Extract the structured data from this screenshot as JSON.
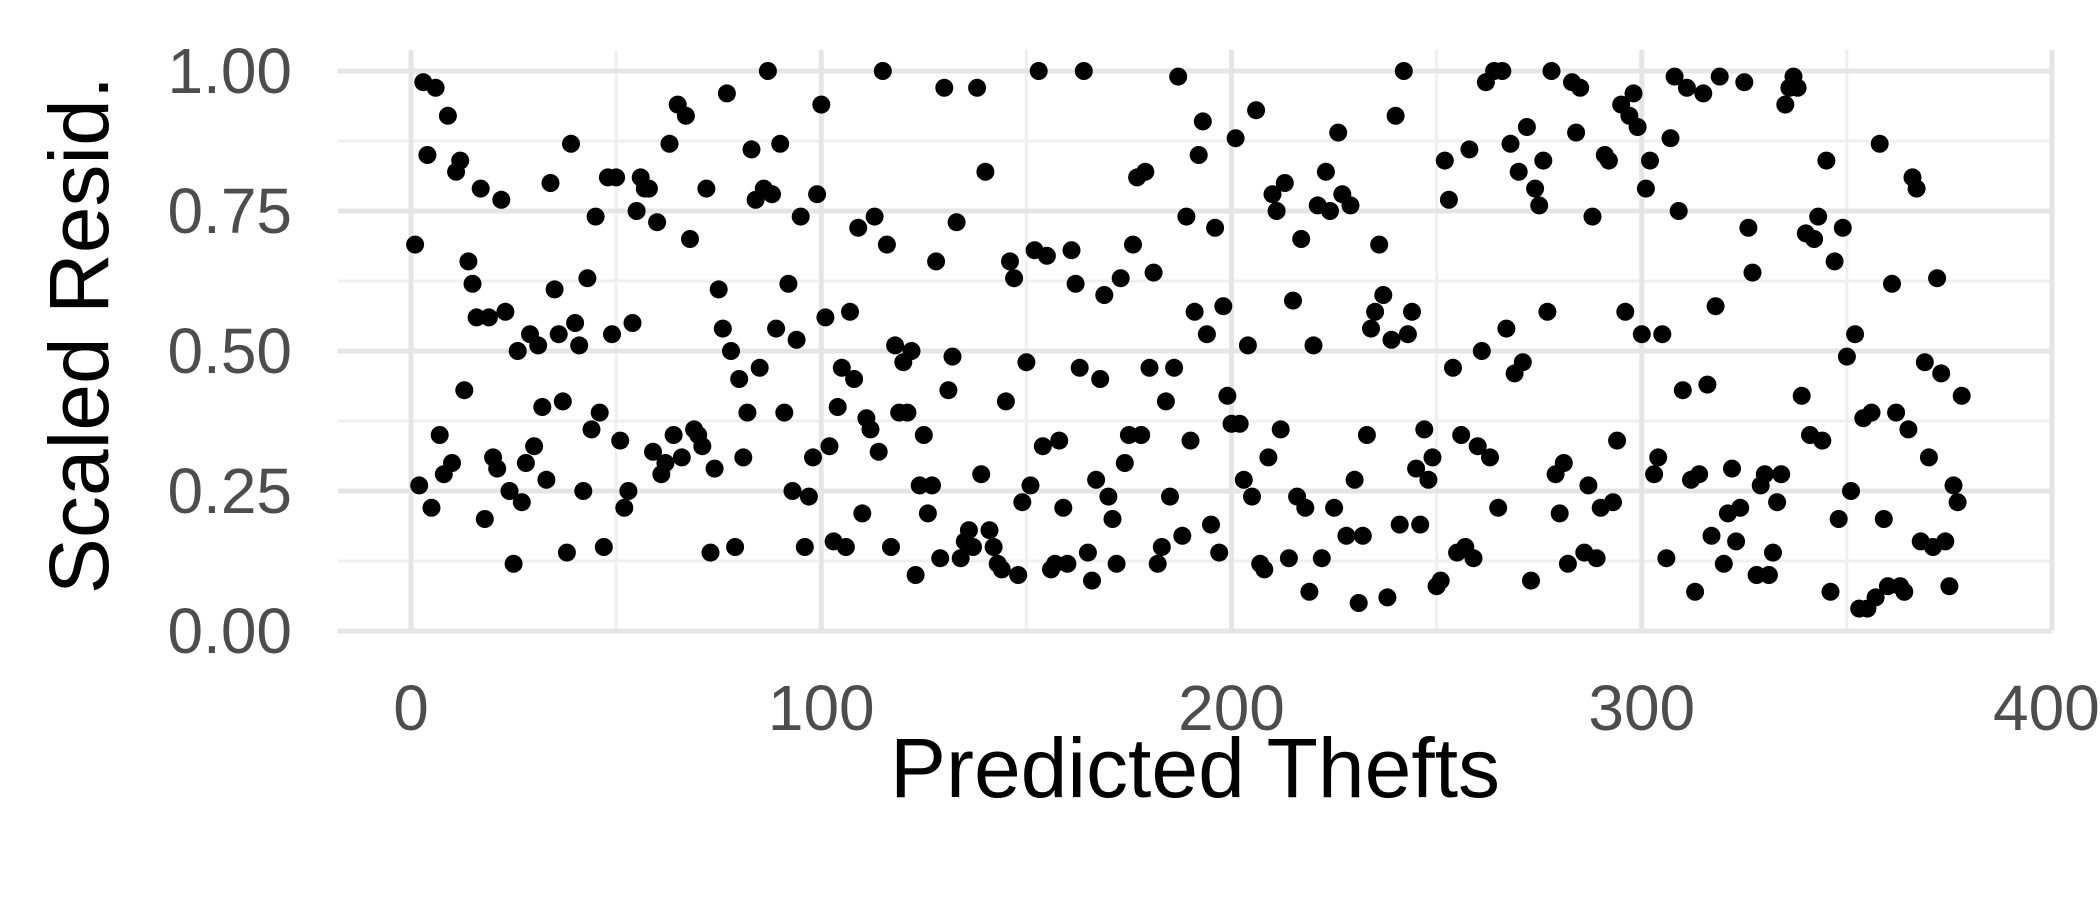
{
  "chart_data": {
    "type": "scatter",
    "title": "",
    "xlabel": "Predicted Thefts",
    "ylabel": "Scaled Resid.",
    "xlim": [
      -15,
      400
    ],
    "ylim": [
      -0.02,
      1.02
    ],
    "x_ticks": [
      0,
      100,
      200,
      300,
      400
    ],
    "x_tick_labels": [
      "0",
      "100",
      "200",
      "300",
      "400"
    ],
    "y_ticks": [
      0,
      0.25,
      0.5,
      0.75,
      1.0
    ],
    "y_tick_labels": [
      "0.00",
      "0.25",
      "0.50",
      "0.75",
      "1.00"
    ],
    "grid": true,
    "legend": "none",
    "point_color": "#000000",
    "points": [
      [
        1,
        0.69
      ],
      [
        2,
        0.26
      ],
      [
        3,
        0.98
      ],
      [
        4,
        0.85
      ],
      [
        5,
        0.22
      ],
      [
        6,
        0.97
      ],
      [
        7,
        0.35
      ],
      [
        8,
        0.28
      ],
      [
        9,
        0.92
      ],
      [
        10,
        0.3
      ],
      [
        11,
        0.82
      ],
      [
        12,
        0.84
      ],
      [
        13,
        0.43
      ],
      [
        14,
        0.66
      ],
      [
        15,
        0.62
      ],
      [
        16,
        0.56
      ],
      [
        17,
        0.79
      ],
      [
        18,
        0.2
      ],
      [
        19,
        0.56
      ],
      [
        20,
        0.31
      ],
      [
        21,
        0.29
      ],
      [
        22,
        0.77
      ],
      [
        23,
        0.57
      ],
      [
        24,
        0.25
      ],
      [
        25,
        0.12
      ],
      [
        26,
        0.5
      ],
      [
        27,
        0.23
      ],
      [
        28,
        0.3
      ],
      [
        29,
        0.53
      ],
      [
        30,
        0.33
      ],
      [
        31,
        0.51
      ],
      [
        32,
        0.4
      ],
      [
        33,
        0.27
      ],
      [
        34,
        0.8
      ],
      [
        35,
        0.61
      ],
      [
        36,
        0.53
      ],
      [
        37,
        0.41
      ],
      [
        38,
        0.14
      ],
      [
        39,
        0.87
      ],
      [
        40,
        0.55
      ],
      [
        41,
        0.51
      ],
      [
        42,
        0.25
      ],
      [
        43,
        0.63
      ],
      [
        44,
        0.36
      ],
      [
        45,
        0.74
      ],
      [
        46,
        0.39
      ],
      [
        47,
        0.15
      ],
      [
        48,
        0.81
      ],
      [
        49,
        0.53
      ],
      [
        50,
        0.81
      ],
      [
        51,
        0.34
      ],
      [
        52,
        0.22
      ],
      [
        53,
        0.25
      ],
      [
        54,
        0.55
      ],
      [
        55,
        0.75
      ],
      [
        56,
        0.81
      ],
      [
        57,
        0.79
      ],
      [
        58,
        0.79
      ],
      [
        59,
        0.32
      ],
      [
        60,
        0.73
      ],
      [
        61,
        0.28
      ],
      [
        62,
        0.3
      ],
      [
        63,
        0.87
      ],
      [
        64,
        0.35
      ],
      [
        65,
        0.94
      ],
      [
        66,
        0.31
      ],
      [
        67,
        0.92
      ],
      [
        68,
        0.7
      ],
      [
        69,
        0.36
      ],
      [
        70,
        0.35
      ],
      [
        71,
        0.33
      ],
      [
        72,
        0.79
      ],
      [
        73,
        0.14
      ],
      [
        74,
        0.29
      ],
      [
        75,
        0.61
      ],
      [
        76,
        0.54
      ],
      [
        77,
        0.96
      ],
      [
        78,
        0.5
      ],
      [
        79,
        0.15
      ],
      [
        80,
        0.45
      ],
      [
        81,
        0.31
      ],
      [
        82,
        0.39
      ],
      [
        83,
        0.86
      ],
      [
        84,
        0.77
      ],
      [
        85,
        0.47
      ],
      [
        86,
        0.79
      ],
      [
        87,
        1.0
      ],
      [
        88,
        0.78
      ],
      [
        89,
        0.54
      ],
      [
        90,
        0.87
      ],
      [
        91,
        0.39
      ],
      [
        92,
        0.62
      ],
      [
        93,
        0.25
      ],
      [
        94,
        0.52
      ],
      [
        95,
        0.74
      ],
      [
        96,
        0.15
      ],
      [
        97,
        0.24
      ],
      [
        98,
        0.31
      ],
      [
        99,
        0.78
      ],
      [
        100,
        0.94
      ],
      [
        101,
        0.56
      ],
      [
        102,
        0.33
      ],
      [
        103,
        0.16
      ],
      [
        104,
        0.4
      ],
      [
        105,
        0.47
      ],
      [
        106,
        0.15
      ],
      [
        107,
        0.57
      ],
      [
        108,
        0.45
      ],
      [
        109,
        0.72
      ],
      [
        110,
        0.21
      ],
      [
        111,
        0.38
      ],
      [
        112,
        0.36
      ],
      [
        113,
        0.74
      ],
      [
        114,
        0.32
      ],
      [
        115,
        1.0
      ],
      [
        116,
        0.69
      ],
      [
        117,
        0.15
      ],
      [
        118,
        0.51
      ],
      [
        119,
        0.39
      ],
      [
        120,
        0.48
      ],
      [
        121,
        0.39
      ],
      [
        122,
        0.5
      ],
      [
        123,
        0.1
      ],
      [
        124,
        0.26
      ],
      [
        125,
        0.35
      ],
      [
        126,
        0.21
      ],
      [
        127,
        0.26
      ],
      [
        128,
        0.66
      ],
      [
        129,
        0.13
      ],
      [
        130,
        0.97
      ],
      [
        131,
        0.43
      ],
      [
        132,
        0.49
      ],
      [
        133,
        0.73
      ],
      [
        134,
        0.13
      ],
      [
        135,
        0.16
      ],
      [
        136,
        0.18
      ],
      [
        137,
        0.15
      ],
      [
        138,
        0.97
      ],
      [
        139,
        0.28
      ],
      [
        140,
        0.82
      ],
      [
        141,
        0.18
      ],
      [
        142,
        0.15
      ],
      [
        143,
        0.12
      ],
      [
        144,
        0.11
      ],
      [
        145,
        0.41
      ],
      [
        146,
        0.66
      ],
      [
        147,
        0.63
      ],
      [
        148,
        0.1
      ],
      [
        149,
        0.23
      ],
      [
        150,
        0.48
      ],
      [
        151,
        0.26
      ],
      [
        152,
        0.68
      ],
      [
        153,
        1.0
      ],
      [
        154,
        0.33
      ],
      [
        155,
        0.67
      ],
      [
        156,
        0.11
      ],
      [
        157,
        0.12
      ],
      [
        158,
        0.34
      ],
      [
        159,
        0.22
      ],
      [
        160,
        0.12
      ],
      [
        161,
        0.68
      ],
      [
        162,
        0.62
      ],
      [
        163,
        0.47
      ],
      [
        164,
        1.0
      ],
      [
        165,
        0.14
      ],
      [
        166,
        0.09
      ],
      [
        167,
        0.27
      ],
      [
        168,
        0.45
      ],
      [
        169,
        0.6
      ],
      [
        170,
        0.24
      ],
      [
        171,
        0.2
      ],
      [
        172,
        0.12
      ],
      [
        173,
        0.63
      ],
      [
        174,
        0.3
      ],
      [
        175,
        0.35
      ],
      [
        176,
        0.69
      ],
      [
        177,
        0.81
      ],
      [
        178,
        0.35
      ],
      [
        179,
        0.82
      ],
      [
        180,
        0.47
      ],
      [
        181,
        0.64
      ],
      [
        182,
        0.12
      ],
      [
        183,
        0.15
      ],
      [
        184,
        0.41
      ],
      [
        185,
        0.24
      ],
      [
        186,
        0.47
      ],
      [
        187,
        0.99
      ],
      [
        188,
        0.17
      ],
      [
        189,
        0.74
      ],
      [
        190,
        0.34
      ],
      [
        191,
        0.57
      ],
      [
        192,
        0.85
      ],
      [
        193,
        0.91
      ],
      [
        194,
        0.53
      ],
      [
        195,
        0.19
      ],
      [
        196,
        0.72
      ],
      [
        197,
        0.14
      ],
      [
        198,
        0.58
      ],
      [
        199,
        0.42
      ],
      [
        200,
        0.37
      ],
      [
        201,
        0.88
      ],
      [
        202,
        0.37
      ],
      [
        203,
        0.27
      ],
      [
        204,
        0.51
      ],
      [
        205,
        0.24
      ],
      [
        206,
        0.93
      ],
      [
        207,
        0.12
      ],
      [
        208,
        0.11
      ],
      [
        209,
        0.31
      ],
      [
        210,
        0.78
      ],
      [
        211,
        0.75
      ],
      [
        212,
        0.36
      ],
      [
        213,
        0.8
      ],
      [
        214,
        0.13
      ],
      [
        215,
        0.59
      ],
      [
        216,
        0.24
      ],
      [
        217,
        0.7
      ],
      [
        218,
        0.22
      ],
      [
        219,
        0.07
      ],
      [
        220,
        0.51
      ],
      [
        221,
        0.76
      ],
      [
        222,
        0.13
      ],
      [
        223,
        0.82
      ],
      [
        224,
        0.75
      ],
      [
        225,
        0.22
      ],
      [
        226,
        0.89
      ],
      [
        227,
        0.78
      ],
      [
        228,
        0.17
      ],
      [
        229,
        0.76
      ],
      [
        230,
        0.27
      ],
      [
        231,
        0.05
      ],
      [
        232,
        0.17
      ],
      [
        233,
        0.35
      ],
      [
        234,
        0.54
      ],
      [
        235,
        0.57
      ],
      [
        236,
        0.69
      ],
      [
        237,
        0.6
      ],
      [
        238,
        0.06
      ],
      [
        239,
        0.52
      ],
      [
        240,
        0.92
      ],
      [
        241,
        0.19
      ],
      [
        242,
        1.0
      ],
      [
        243,
        0.53
      ],
      [
        244,
        0.57
      ],
      [
        245,
        0.29
      ],
      [
        246,
        0.19
      ],
      [
        247,
        0.36
      ],
      [
        248,
        0.27
      ],
      [
        249,
        0.31
      ],
      [
        250,
        0.08
      ],
      [
        251,
        0.09
      ],
      [
        252,
        0.84
      ],
      [
        253,
        0.77
      ],
      [
        254,
        0.47
      ],
      [
        255,
        0.14
      ],
      [
        256,
        0.35
      ],
      [
        257,
        0.15
      ],
      [
        258,
        0.86
      ],
      [
        259,
        0.13
      ],
      [
        260,
        0.33
      ],
      [
        261,
        0.5
      ],
      [
        262,
        0.98
      ],
      [
        263,
        0.31
      ],
      [
        264,
        1.0
      ],
      [
        265,
        0.22
      ],
      [
        266,
        1.0
      ],
      [
        267,
        0.54
      ],
      [
        268,
        0.87
      ],
      [
        269,
        0.46
      ],
      [
        270,
        0.82
      ],
      [
        271,
        0.48
      ],
      [
        272,
        0.9
      ],
      [
        273,
        0.09
      ],
      [
        274,
        0.79
      ],
      [
        275,
        0.76
      ],
      [
        276,
        0.84
      ],
      [
        277,
        0.57
      ],
      [
        278,
        1.0
      ],
      [
        279,
        0.28
      ],
      [
        280,
        0.21
      ],
      [
        281,
        0.3
      ],
      [
        282,
        0.12
      ],
      [
        283,
        0.98
      ],
      [
        284,
        0.89
      ],
      [
        285,
        0.97
      ],
      [
        286,
        0.14
      ],
      [
        287,
        0.26
      ],
      [
        288,
        0.74
      ],
      [
        289,
        0.13
      ],
      [
        290,
        0.22
      ],
      [
        291,
        0.85
      ],
      [
        292,
        0.84
      ],
      [
        293,
        0.23
      ],
      [
        294,
        0.34
      ],
      [
        295,
        0.94
      ],
      [
        296,
        0.57
      ],
      [
        297,
        0.92
      ],
      [
        298,
        0.96
      ],
      [
        299,
        0.9
      ],
      [
        300,
        0.53
      ],
      [
        301,
        0.79
      ],
      [
        302,
        0.84
      ],
      [
        303,
        0.28
      ],
      [
        304,
        0.31
      ],
      [
        305,
        0.53
      ],
      [
        306,
        0.13
      ],
      [
        307,
        0.88
      ],
      [
        308,
        0.99
      ],
      [
        309,
        0.75
      ],
      [
        310,
        0.43
      ],
      [
        311,
        0.97
      ],
      [
        312,
        0.27
      ],
      [
        313,
        0.07
      ],
      [
        314,
        0.28
      ],
      [
        315,
        0.96
      ],
      [
        316,
        0.44
      ],
      [
        317,
        0.17
      ],
      [
        318,
        0.58
      ],
      [
        319,
        0.99
      ],
      [
        320,
        0.12
      ],
      [
        321,
        0.21
      ],
      [
        322,
        0.29
      ],
      [
        323,
        0.16
      ],
      [
        324,
        0.22
      ],
      [
        325,
        0.98
      ],
      [
        326,
        0.72
      ],
      [
        327,
        0.64
      ],
      [
        328,
        0.1
      ],
      [
        329,
        0.26
      ],
      [
        330,
        0.28
      ],
      [
        331,
        0.1
      ],
      [
        332,
        0.14
      ],
      [
        333,
        0.23
      ],
      [
        334,
        0.28
      ],
      [
        335,
        0.94
      ],
      [
        336,
        0.97
      ],
      [
        337,
        0.99
      ],
      [
        338,
        0.97
      ],
      [
        339,
        0.42
      ],
      [
        340,
        0.71
      ],
      [
        341,
        0.35
      ],
      [
        342,
        0.7
      ],
      [
        343,
        0.74
      ],
      [
        344,
        0.34
      ],
      [
        345,
        0.84
      ],
      [
        346,
        0.07
      ],
      [
        347,
        0.66
      ],
      [
        348,
        0.2
      ],
      [
        349,
        0.72
      ],
      [
        350,
        0.49
      ],
      [
        351,
        0.25
      ],
      [
        352,
        0.53
      ],
      [
        353,
        0.04
      ],
      [
        354,
        0.38
      ],
      [
        355,
        0.04
      ],
      [
        356,
        0.39
      ],
      [
        357,
        0.06
      ],
      [
        358,
        0.87
      ],
      [
        359,
        0.2
      ],
      [
        360,
        0.08
      ],
      [
        361,
        0.62
      ],
      [
        362,
        0.39
      ],
      [
        363,
        0.08
      ],
      [
        364,
        0.07
      ],
      [
        365,
        0.36
      ],
      [
        366,
        0.81
      ],
      [
        367,
        0.79
      ],
      [
        368,
        0.16
      ],
      [
        369,
        0.48
      ],
      [
        370,
        0.31
      ],
      [
        371,
        0.15
      ],
      [
        372,
        0.63
      ],
      [
        373,
        0.46
      ],
      [
        374,
        0.16
      ],
      [
        375,
        0.08
      ],
      [
        376,
        0.26
      ],
      [
        377,
        0.23
      ],
      [
        378,
        0.42
      ]
    ]
  }
}
